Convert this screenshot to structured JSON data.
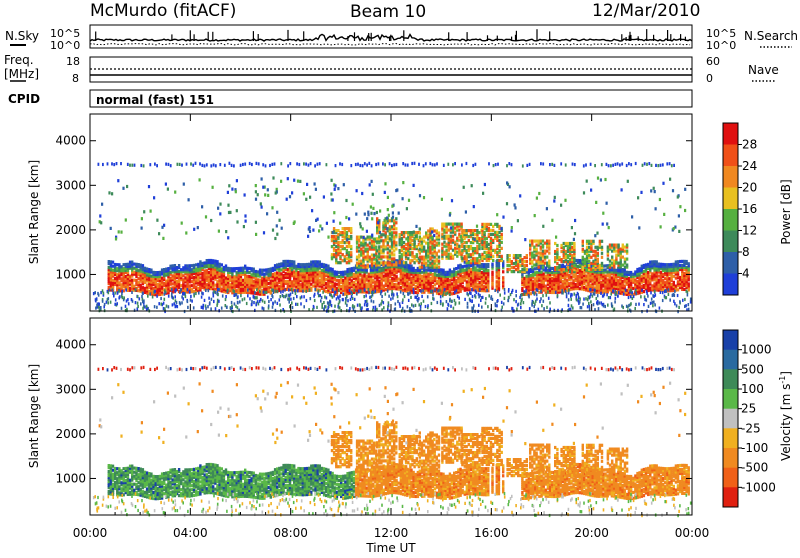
{
  "header": {
    "station": "McMurdo (fitACF)",
    "beam": "Beam 10",
    "date": "12/Mar/2010"
  },
  "noise_panel": {
    "left_label": "N.Sky",
    "right_label": "N.Search",
    "left_ticks": [
      "10^5",
      "10^0"
    ],
    "right_ticks": [
      "10^5",
      "10^0"
    ]
  },
  "freq_panel": {
    "left_label_1": "Freq.",
    "left_label_2": "[MHz]",
    "right_label": "Nave",
    "left_ticks": [
      "18",
      "8"
    ],
    "right_ticks": [
      "60",
      "0"
    ]
  },
  "cpid_panel": {
    "label": "CPID",
    "value": "normal (fast) 151"
  },
  "colors": {
    "power": [
      "#1f3fd8",
      "#2e5fa8",
      "#3d8a5a",
      "#56b040",
      "#e8c020",
      "#f08820",
      "#f05018",
      "#e01010"
    ],
    "velocity": [
      "#1840a8",
      "#2a6aa0",
      "#3e8a58",
      "#5ab848",
      "#c0c0c0",
      "#f0b020",
      "#f08a20",
      "#f06018",
      "#e02010"
    ]
  },
  "chart_data": [
    {
      "type": "heatmap",
      "variable": "Power",
      "ylabel": "Slant Range [km]",
      "xlabel": "Time UT",
      "x_ticks": [
        "00:00",
        "04:00",
        "08:00",
        "12:00",
        "16:00",
        "20:00",
        "00:00"
      ],
      "y_ticks": [
        1000,
        2000,
        3000,
        4000
      ],
      "ylim": [
        180,
        4600
      ],
      "xlim_hours": [
        0,
        24
      ],
      "colorbar": {
        "label": "Power [dB]",
        "ticks": [
          4,
          8,
          12,
          16,
          20,
          24,
          28
        ],
        "range": [
          0,
          32
        ]
      },
      "bands": [
        {
          "label": "main echo",
          "t_start": 0.6,
          "t_end": 23.9,
          "r_low": 600,
          "r_high": 1300,
          "dominant": "red/orange"
        },
        {
          "label": "upper echo",
          "t_start": 9.5,
          "t_end": 21.5,
          "r_low": 900,
          "r_high": 2200
        },
        {
          "label": "3500 km line",
          "t_start": 0.3,
          "t_end": 23.8,
          "range": 3500
        }
      ]
    },
    {
      "type": "heatmap",
      "variable": "Velocity",
      "ylabel": "Slant Range [km]",
      "xlabel": "Time UT",
      "x_ticks": [
        "00:00",
        "04:00",
        "08:00",
        "12:00",
        "16:00",
        "20:00",
        "00:00"
      ],
      "y_ticks": [
        1000,
        2000,
        3000,
        4000
      ],
      "ylim": [
        180,
        4600
      ],
      "xlim_hours": [
        0,
        24
      ],
      "colorbar": {
        "label": "Velocity [m s^-1]",
        "ticks": [
          "1000",
          "500",
          "100",
          "25",
          "-25",
          "-100",
          "-500",
          "-1000"
        ]
      },
      "bands": [
        {
          "label": "positive velocity region",
          "t_start": 0.6,
          "t_end": 10.5,
          "r_low": 600,
          "r_high": 1300,
          "dominant": "green/blue"
        },
        {
          "label": "negative velocity region",
          "t_start": 10.5,
          "t_end": 23.9,
          "r_low": 600,
          "r_high": 2200,
          "dominant": "orange"
        }
      ]
    }
  ],
  "x_axis_label": "Time UT"
}
